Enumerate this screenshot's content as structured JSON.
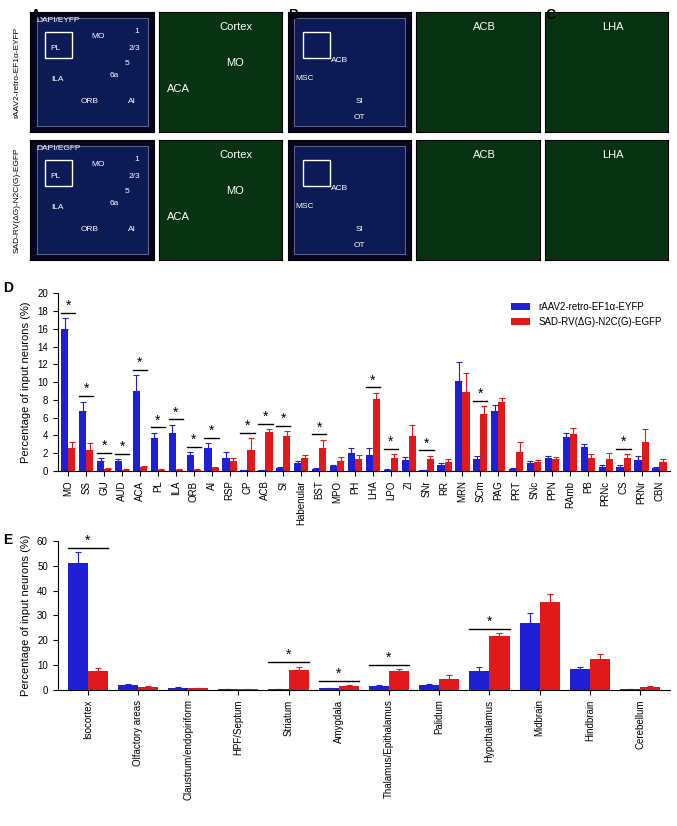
{
  "image_panels": {
    "row_labels": [
      "rAAV2-retro-EF1α-EYFP",
      "SAD-RV(ΔG)-N2C(G)-EGFP"
    ],
    "panels": [
      {
        "letter": "A",
        "images": [
          {
            "row": 0,
            "kind": "section_a",
            "texts": [
              "DAPI/EYFP",
              "MO",
              "1",
              "2/3",
              "5",
              "6a",
              "PL",
              "ILA",
              "ORB",
              "AI"
            ]
          },
          {
            "row": 0,
            "kind": "zoom_a",
            "texts": [
              "Cortex",
              "MO",
              "ACA"
            ]
          },
          {
            "row": 1,
            "kind": "section_a",
            "texts": [
              "DAPI/EGFP",
              "MO",
              "1",
              "2/3",
              "5",
              "6a",
              "PL",
              "ILA",
              "ORB",
              "AI"
            ]
          },
          {
            "row": 1,
            "kind": "zoom_a",
            "texts": [
              "Cortex",
              "MO",
              "ACA"
            ]
          }
        ]
      },
      {
        "letter": "B",
        "images": [
          {
            "row": 0,
            "kind": "section_b",
            "texts": [
              "MSC",
              "ACB",
              "SI",
              "OT"
            ]
          },
          {
            "row": 0,
            "kind": "zoom",
            "texts": [
              "ACB"
            ]
          },
          {
            "row": 1,
            "kind": "section_b",
            "texts": [
              "MSC",
              "ACB",
              "SI",
              "OT"
            ]
          },
          {
            "row": 1,
            "kind": "zoom",
            "texts": [
              "ACB"
            ]
          }
        ]
      },
      {
        "letter": "C",
        "images": [
          {
            "row": 0,
            "kind": "zoom",
            "texts": [
              "LHA"
            ]
          },
          {
            "row": 1,
            "kind": "zoom",
            "texts": [
              "LHA"
            ]
          }
        ]
      }
    ]
  },
  "chart_data": [
    {
      "type": "bar",
      "letter": "D",
      "categories": [
        "MO",
        "SS",
        "GU",
        "AUD",
        "ACA",
        "PL",
        "ILA",
        "ORB",
        "AI",
        "RSP",
        "CP",
        "ACB",
        "SI",
        "Habenular",
        "BST",
        "MPO",
        "PH",
        "LHA",
        "LPO",
        "ZI",
        "SNr",
        "RR",
        "MRN",
        "SCm",
        "PAG",
        "PRT",
        "SNc",
        "PPN",
        "RAmb",
        "PB",
        "PRNc",
        "CS",
        "PRNr",
        "CBN"
      ],
      "series": [
        {
          "name": "rAAV2-retro-EF1α-EYFP",
          "color": "#1f1fd6",
          "values": [
            16.0,
            6.7,
            1.1,
            1.1,
            9.0,
            3.7,
            4.3,
            1.8,
            2.6,
            1.5,
            0.05,
            0.05,
            0.3,
            0.9,
            0.2,
            0.5,
            2.0,
            1.8,
            0.1,
            1.2,
            0.05,
            0.7,
            10.1,
            1.3,
            6.7,
            0.2,
            0.9,
            1.5,
            3.8,
            2.7,
            0.4,
            0.4,
            1.2,
            0.3
          ],
          "errors": [
            1.2,
            1.1,
            0.3,
            0.2,
            1.8,
            0.6,
            0.9,
            0.3,
            0.5,
            0.6,
            0.05,
            0.05,
            0.1,
            0.2,
            0.1,
            0.2,
            0.6,
            0.8,
            0.05,
            0.4,
            0.05,
            0.2,
            2.1,
            0.4,
            0.7,
            0.1,
            0.2,
            0.2,
            0.5,
            0.3,
            0.2,
            0.2,
            0.5,
            0.1
          ]
        },
        {
          "name": "SAD-RV(ΔG)-N2C(G)-EGFP",
          "color": "#e0191b",
          "values": [
            2.6,
            2.4,
            0.2,
            0.1,
            0.4,
            0.1,
            0.1,
            0.1,
            0.3,
            1.1,
            2.3,
            4.4,
            3.9,
            1.5,
            2.6,
            1.1,
            1.3,
            8.1,
            1.4,
            3.9,
            1.3,
            1.0,
            8.9,
            6.4,
            7.8,
            2.1,
            1.0,
            1.3,
            4.1,
            1.5,
            1.3,
            1.4,
            3.2,
            1.0
          ],
          "errors": [
            0.7,
            0.7,
            0.1,
            0.05,
            0.1,
            0.05,
            0.05,
            0.05,
            0.1,
            0.4,
            1.4,
            0.3,
            0.6,
            0.3,
            0.9,
            0.5,
            0.5,
            0.7,
            0.5,
            1.3,
            0.4,
            0.3,
            2.1,
            0.9,
            0.4,
            1.1,
            0.2,
            0.3,
            0.7,
            0.4,
            0.7,
            0.5,
            1.5,
            0.3
          ]
        }
      ],
      "y_label": "Percentage of input neurons (%)",
      "ylim": [
        0,
        20
      ],
      "yticks": [
        0,
        2,
        4,
        6,
        8,
        10,
        12,
        14,
        16,
        18,
        20
      ],
      "legend": "upper right",
      "annotations": [
        {
          "category": "MO",
          "text": "*"
        },
        {
          "category": "SS",
          "text": "*"
        },
        {
          "category": "GU",
          "text": "*"
        },
        {
          "category": "AUD",
          "text": "*"
        },
        {
          "category": "ACA",
          "text": "*"
        },
        {
          "category": "PL",
          "text": "*"
        },
        {
          "category": "ILA",
          "text": "*"
        },
        {
          "category": "ORB",
          "text": "*"
        },
        {
          "category": "AI",
          "text": "*"
        },
        {
          "category": "CP",
          "text": "*"
        },
        {
          "category": "ACB",
          "text": "*"
        },
        {
          "category": "SI",
          "text": "*"
        },
        {
          "category": "BST",
          "text": "*"
        },
        {
          "category": "LHA",
          "text": "*"
        },
        {
          "category": "LPO",
          "text": "*"
        },
        {
          "category": "SNr",
          "text": "*"
        },
        {
          "category": "SCm",
          "text": "*"
        },
        {
          "category": "CS",
          "text": "*"
        }
      ]
    },
    {
      "type": "bar",
      "letter": "E",
      "categories": [
        "Isocortex",
        "Olfactory areas",
        "Claustrum/endopiriform",
        "HPF/Septum",
        "Striatum",
        "Amygdala",
        "Thalamus/Epithalamus",
        "Palidum",
        "Hypothalamus",
        "Midbrain",
        "Hindbrain",
        "Cerebellum"
      ],
      "series": [
        {
          "color": "#1f1fd6",
          "values": [
            51.0,
            2.1,
            0.8,
            0.2,
            0.2,
            0.6,
            1.5,
            2.0,
            7.5,
            27.0,
            8.5,
            0.2
          ],
          "errors": [
            4.5,
            0.3,
            0.2,
            0.1,
            0.1,
            0.2,
            0.4,
            0.4,
            1.5,
            4.0,
            0.6,
            0.1
          ]
        },
        {
          "color": "#e0191b",
          "values": [
            7.5,
            1.0,
            0.6,
            0.3,
            8.0,
            1.5,
            7.5,
            4.5,
            21.5,
            35.5,
            12.5,
            1.2
          ],
          "errors": [
            1.2,
            0.3,
            0.2,
            0.1,
            1.3,
            0.3,
            0.8,
            1.3,
            1.2,
            3.0,
            1.8,
            0.4
          ]
        }
      ],
      "y_label": "Percentage of input neurons (%)",
      "ylim": [
        0,
        60
      ],
      "yticks": [
        0,
        10,
        20,
        30,
        40,
        50,
        60
      ],
      "annotations": [
        {
          "category": "Isocortex",
          "text": "*"
        },
        {
          "category": "Striatum",
          "text": "*"
        },
        {
          "category": "Amygdala",
          "text": "*"
        },
        {
          "category": "Thalamus/Epithalamus",
          "text": "*"
        },
        {
          "category": "Hypothalamus",
          "text": "*"
        }
      ]
    }
  ]
}
